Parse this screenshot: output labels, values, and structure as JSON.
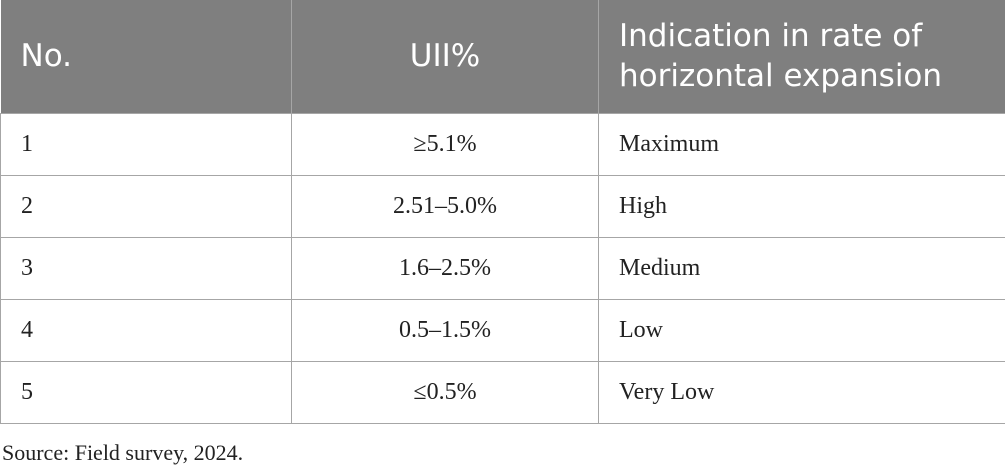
{
  "table": {
    "header": [
      "No.",
      "UII%",
      "Indication in rate of horizontal expansion"
    ],
    "rows": [
      [
        "1",
        "≥5.1%",
        "Maximum"
      ],
      [
        "2",
        "2.51–5.0%",
        "High"
      ],
      [
        "3",
        "1.6–2.5%",
        "Medium"
      ],
      [
        "4",
        "0.5–1.5%",
        "Low"
      ],
      [
        "5",
        "≤0.5%",
        "Very Low"
      ]
    ]
  },
  "source": "Source: Field survey, 2024."
}
